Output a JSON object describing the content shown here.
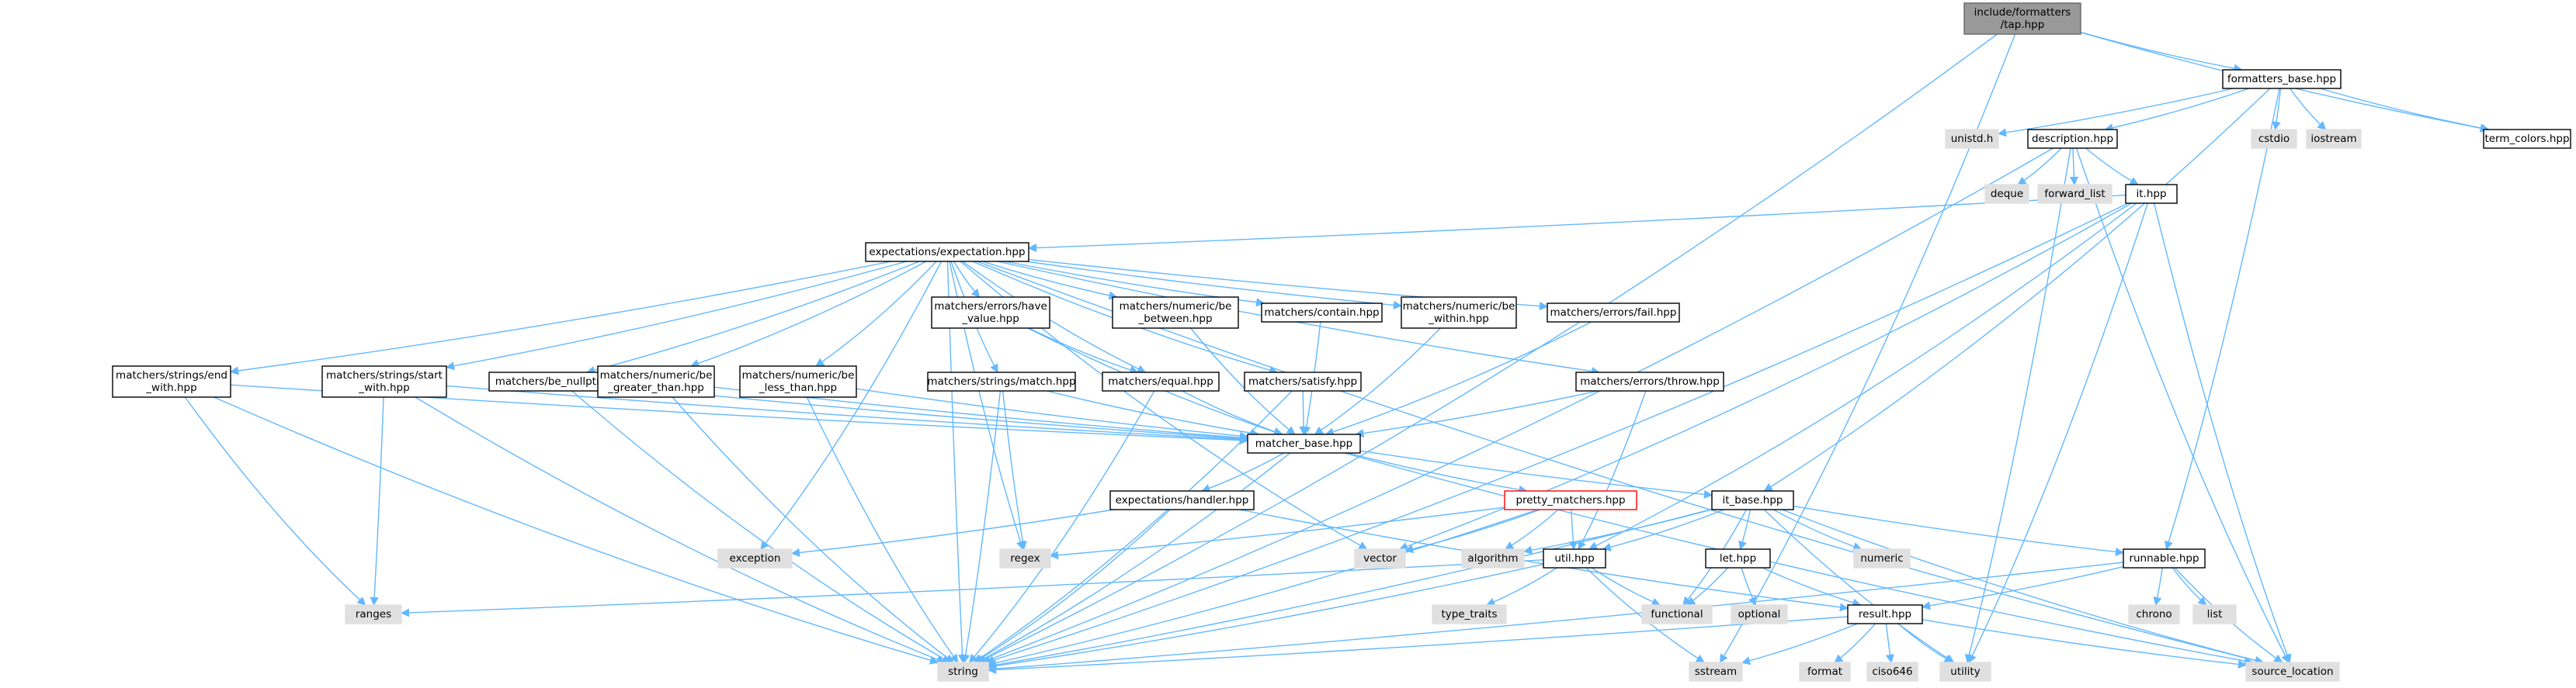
{
  "graph": {
    "title": "include/formatters/tap.hpp",
    "colors": {
      "edge": "#63b8ff",
      "root_fill": "#999999",
      "root_stroke": "#666666",
      "header_fill": "#ffffff",
      "header_stroke": "#000000",
      "system_fill": "#e0e0e0",
      "system_stroke": "#e0e0e0",
      "truncated_stroke": "#ff0000",
      "system_text": "#333333"
    },
    "nodes": [
      {
        "id": "tap",
        "lines": [
          "include/formatters",
          "/tap.hpp"
        ],
        "kind": "root"
      },
      {
        "id": "formatters_base",
        "lines": [
          "formatters_base.hpp"
        ],
        "kind": "header"
      },
      {
        "id": "unistd",
        "lines": [
          "unistd.h"
        ],
        "kind": "system"
      },
      {
        "id": "description",
        "lines": [
          "description.hpp"
        ],
        "kind": "header"
      },
      {
        "id": "cstdio",
        "lines": [
          "cstdio"
        ],
        "kind": "system"
      },
      {
        "id": "iostream",
        "lines": [
          "iostream"
        ],
        "kind": "system"
      },
      {
        "id": "term_colors",
        "lines": [
          "term_colors.hpp"
        ],
        "kind": "header"
      },
      {
        "id": "deque",
        "lines": [
          "deque"
        ],
        "kind": "system"
      },
      {
        "id": "forward_list",
        "lines": [
          "forward_list"
        ],
        "kind": "system"
      },
      {
        "id": "it",
        "lines": [
          "it.hpp"
        ],
        "kind": "header"
      },
      {
        "id": "expectation",
        "lines": [
          "expectations/expectation.hpp"
        ],
        "kind": "header"
      },
      {
        "id": "have_value",
        "lines": [
          "matchers/errors/have",
          "_value.hpp"
        ],
        "kind": "header"
      },
      {
        "id": "be_between",
        "lines": [
          "matchers/numeric/be",
          "_between.hpp"
        ],
        "kind": "header"
      },
      {
        "id": "contain",
        "lines": [
          "matchers/contain.hpp"
        ],
        "kind": "header"
      },
      {
        "id": "be_within",
        "lines": [
          "matchers/numeric/be",
          "_within.hpp"
        ],
        "kind": "header"
      },
      {
        "id": "fail",
        "lines": [
          "matchers/errors/fail.hpp"
        ],
        "kind": "header"
      },
      {
        "id": "end_with",
        "lines": [
          "matchers/strings/end",
          "_with.hpp"
        ],
        "kind": "header"
      },
      {
        "id": "start_with",
        "lines": [
          "matchers/strings/start",
          "_with.hpp"
        ],
        "kind": "header"
      },
      {
        "id": "be_nullptr",
        "lines": [
          "matchers/be_nullptr.hpp"
        ],
        "kind": "header"
      },
      {
        "id": "be_greater",
        "lines": [
          "matchers/numeric/be",
          "_greater_than.hpp"
        ],
        "kind": "header"
      },
      {
        "id": "be_less",
        "lines": [
          "matchers/numeric/be",
          "_less_than.hpp"
        ],
        "kind": "header"
      },
      {
        "id": "match",
        "lines": [
          "matchers/strings/match.hpp"
        ],
        "kind": "header"
      },
      {
        "id": "equal",
        "lines": [
          "matchers/equal.hpp"
        ],
        "kind": "header"
      },
      {
        "id": "satisfy",
        "lines": [
          "matchers/satisfy.hpp"
        ],
        "kind": "header"
      },
      {
        "id": "throw",
        "lines": [
          "matchers/errors/throw.hpp"
        ],
        "kind": "header"
      },
      {
        "id": "matcher_base",
        "lines": [
          "matcher_base.hpp"
        ],
        "kind": "header"
      },
      {
        "id": "handler",
        "lines": [
          "expectations/handler.hpp"
        ],
        "kind": "header"
      },
      {
        "id": "pretty_matchers",
        "lines": [
          "pretty_matchers.hpp"
        ],
        "kind": "truncated"
      },
      {
        "id": "it_base",
        "lines": [
          "it_base.hpp"
        ],
        "kind": "header"
      },
      {
        "id": "exception",
        "lines": [
          "exception"
        ],
        "kind": "system"
      },
      {
        "id": "regex",
        "lines": [
          "regex"
        ],
        "kind": "system"
      },
      {
        "id": "vector",
        "lines": [
          "vector"
        ],
        "kind": "system"
      },
      {
        "id": "algorithm",
        "lines": [
          "algorithm"
        ],
        "kind": "system"
      },
      {
        "id": "util",
        "lines": [
          "util.hpp"
        ],
        "kind": "header"
      },
      {
        "id": "let",
        "lines": [
          "let.hpp"
        ],
        "kind": "header"
      },
      {
        "id": "numeric",
        "lines": [
          "numeric"
        ],
        "kind": "system"
      },
      {
        "id": "runnable",
        "lines": [
          "runnable.hpp"
        ],
        "kind": "header"
      },
      {
        "id": "ranges",
        "lines": [
          "ranges"
        ],
        "kind": "system"
      },
      {
        "id": "type_traits",
        "lines": [
          "type_traits"
        ],
        "kind": "system"
      },
      {
        "id": "functional",
        "lines": [
          "functional"
        ],
        "kind": "system"
      },
      {
        "id": "optional",
        "lines": [
          "optional"
        ],
        "kind": "system"
      },
      {
        "id": "result",
        "lines": [
          "result.hpp"
        ],
        "kind": "header"
      },
      {
        "id": "chrono",
        "lines": [
          "chrono"
        ],
        "kind": "system"
      },
      {
        "id": "list",
        "lines": [
          "list"
        ],
        "kind": "system"
      },
      {
        "id": "string",
        "lines": [
          "string"
        ],
        "kind": "system"
      },
      {
        "id": "sstream",
        "lines": [
          "sstream"
        ],
        "kind": "system"
      },
      {
        "id": "format",
        "lines": [
          "format"
        ],
        "kind": "system"
      },
      {
        "id": "ciso646",
        "lines": [
          "ciso646"
        ],
        "kind": "system"
      },
      {
        "id": "utility",
        "lines": [
          "utility"
        ],
        "kind": "system"
      },
      {
        "id": "source_location",
        "lines": [
          "source_location"
        ],
        "kind": "system"
      }
    ],
    "edges": [
      [
        "tap",
        "string"
      ],
      [
        "tap",
        "formatters_base"
      ],
      [
        "tap",
        "term_colors"
      ],
      [
        "tap",
        "sstream"
      ],
      [
        "formatters_base",
        "unistd"
      ],
      [
        "formatters_base",
        "description"
      ],
      [
        "formatters_base",
        "cstdio"
      ],
      [
        "formatters_base",
        "iostream"
      ],
      [
        "formatters_base",
        "term_colors"
      ],
      [
        "formatters_base",
        "it_base"
      ],
      [
        "formatters_base",
        "runnable"
      ],
      [
        "description",
        "string"
      ],
      [
        "description",
        "deque"
      ],
      [
        "description",
        "forward_list"
      ],
      [
        "description",
        "it"
      ],
      [
        "description",
        "utility"
      ],
      [
        "description",
        "source_location"
      ],
      [
        "it",
        "expectation"
      ],
      [
        "it",
        "vector"
      ],
      [
        "it",
        "util"
      ],
      [
        "it",
        "utility"
      ],
      [
        "it",
        "string"
      ],
      [
        "it",
        "source_location"
      ],
      [
        "expectation",
        "have_value"
      ],
      [
        "expectation",
        "be_between"
      ],
      [
        "expectation",
        "contain"
      ],
      [
        "expectation",
        "be_within"
      ],
      [
        "expectation",
        "fail"
      ],
      [
        "expectation",
        "end_with"
      ],
      [
        "expectation",
        "start_with"
      ],
      [
        "expectation",
        "be_nullptr"
      ],
      [
        "expectation",
        "be_greater"
      ],
      [
        "expectation",
        "be_less"
      ],
      [
        "expectation",
        "match"
      ],
      [
        "expectation",
        "equal"
      ],
      [
        "expectation",
        "satisfy"
      ],
      [
        "expectation",
        "throw"
      ],
      [
        "expectation",
        "exception"
      ],
      [
        "expectation",
        "regex"
      ],
      [
        "expectation",
        "string"
      ],
      [
        "expectation",
        "vector"
      ],
      [
        "expectation",
        "source_location"
      ],
      [
        "have_value",
        "matcher_base"
      ],
      [
        "have_value",
        "equal"
      ],
      [
        "be_between",
        "matcher_base"
      ],
      [
        "contain",
        "matcher_base"
      ],
      [
        "be_within",
        "matcher_base"
      ],
      [
        "fail",
        "matcher_base"
      ],
      [
        "end_with",
        "matcher_base"
      ],
      [
        "end_with",
        "string"
      ],
      [
        "end_with",
        "ranges"
      ],
      [
        "start_with",
        "matcher_base"
      ],
      [
        "start_with",
        "string"
      ],
      [
        "start_with",
        "ranges"
      ],
      [
        "be_nullptr",
        "matcher_base"
      ],
      [
        "be_nullptr",
        "string"
      ],
      [
        "be_greater",
        "matcher_base"
      ],
      [
        "be_greater",
        "string"
      ],
      [
        "be_less",
        "matcher_base"
      ],
      [
        "be_less",
        "string"
      ],
      [
        "match",
        "matcher_base"
      ],
      [
        "match",
        "regex"
      ],
      [
        "match",
        "string"
      ],
      [
        "equal",
        "matcher_base"
      ],
      [
        "equal",
        "string"
      ],
      [
        "satisfy",
        "matcher_base"
      ],
      [
        "satisfy",
        "string"
      ],
      [
        "throw",
        "matcher_base"
      ],
      [
        "throw",
        "util"
      ],
      [
        "matcher_base",
        "handler"
      ],
      [
        "matcher_base",
        "pretty_matchers"
      ],
      [
        "matcher_base",
        "it_base"
      ],
      [
        "matcher_base",
        "string"
      ],
      [
        "matcher_base",
        "source_location"
      ],
      [
        "handler",
        "exception"
      ],
      [
        "handler",
        "result"
      ],
      [
        "handler",
        "string"
      ],
      [
        "pretty_matchers",
        "regex"
      ],
      [
        "pretty_matchers",
        "vector"
      ],
      [
        "pretty_matchers",
        "algorithm"
      ],
      [
        "pretty_matchers",
        "util"
      ],
      [
        "pretty_matchers",
        "string"
      ],
      [
        "it_base",
        "algorithm"
      ],
      [
        "it_base",
        "util"
      ],
      [
        "it_base",
        "let"
      ],
      [
        "it_base",
        "numeric"
      ],
      [
        "it_base",
        "runnable"
      ],
      [
        "it_base",
        "functional"
      ],
      [
        "it_base",
        "string"
      ],
      [
        "it_base",
        "utility"
      ],
      [
        "it_base",
        "source_location"
      ],
      [
        "util",
        "ranges"
      ],
      [
        "util",
        "type_traits"
      ],
      [
        "util",
        "functional"
      ],
      [
        "util",
        "string"
      ],
      [
        "util",
        "sstream"
      ],
      [
        "let",
        "functional"
      ],
      [
        "let",
        "optional"
      ],
      [
        "let",
        "result"
      ],
      [
        "runnable",
        "result"
      ],
      [
        "runnable",
        "chrono"
      ],
      [
        "runnable",
        "list"
      ],
      [
        "runnable",
        "source_location"
      ],
      [
        "runnable",
        "string"
      ],
      [
        "result",
        "string"
      ],
      [
        "result",
        "sstream"
      ],
      [
        "result",
        "format"
      ],
      [
        "result",
        "ciso646"
      ],
      [
        "result",
        "utility"
      ],
      [
        "result",
        "source_location"
      ]
    ]
  }
}
